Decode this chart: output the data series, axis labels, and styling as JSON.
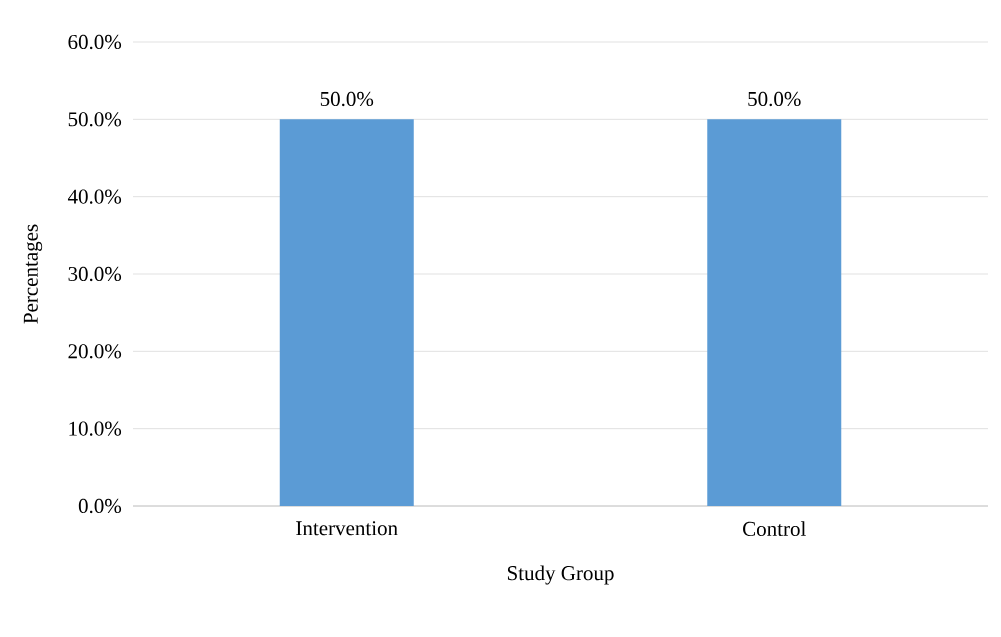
{
  "chart_data": {
    "type": "bar",
    "xlabel": "Study Group",
    "ylabel": "Percentages",
    "categories": [
      "Intervention",
      "Control"
    ],
    "values": [
      50,
      50
    ],
    "value_labels": [
      "50.0%",
      "50.0%"
    ],
    "color": "#5b9bd5",
    "ylim": [
      0,
      60
    ],
    "yticks": [
      {
        "value": 0,
        "label": "0.0%"
      },
      {
        "value": 10,
        "label": "10.0%"
      },
      {
        "value": 20,
        "label": "20.0%"
      },
      {
        "value": 30,
        "label": "30.0%"
      },
      {
        "value": 40,
        "label": "40.0%"
      },
      {
        "value": 50,
        "label": "50.0%"
      },
      {
        "value": 60,
        "label": "60.0%"
      }
    ],
    "grid": "y"
  }
}
